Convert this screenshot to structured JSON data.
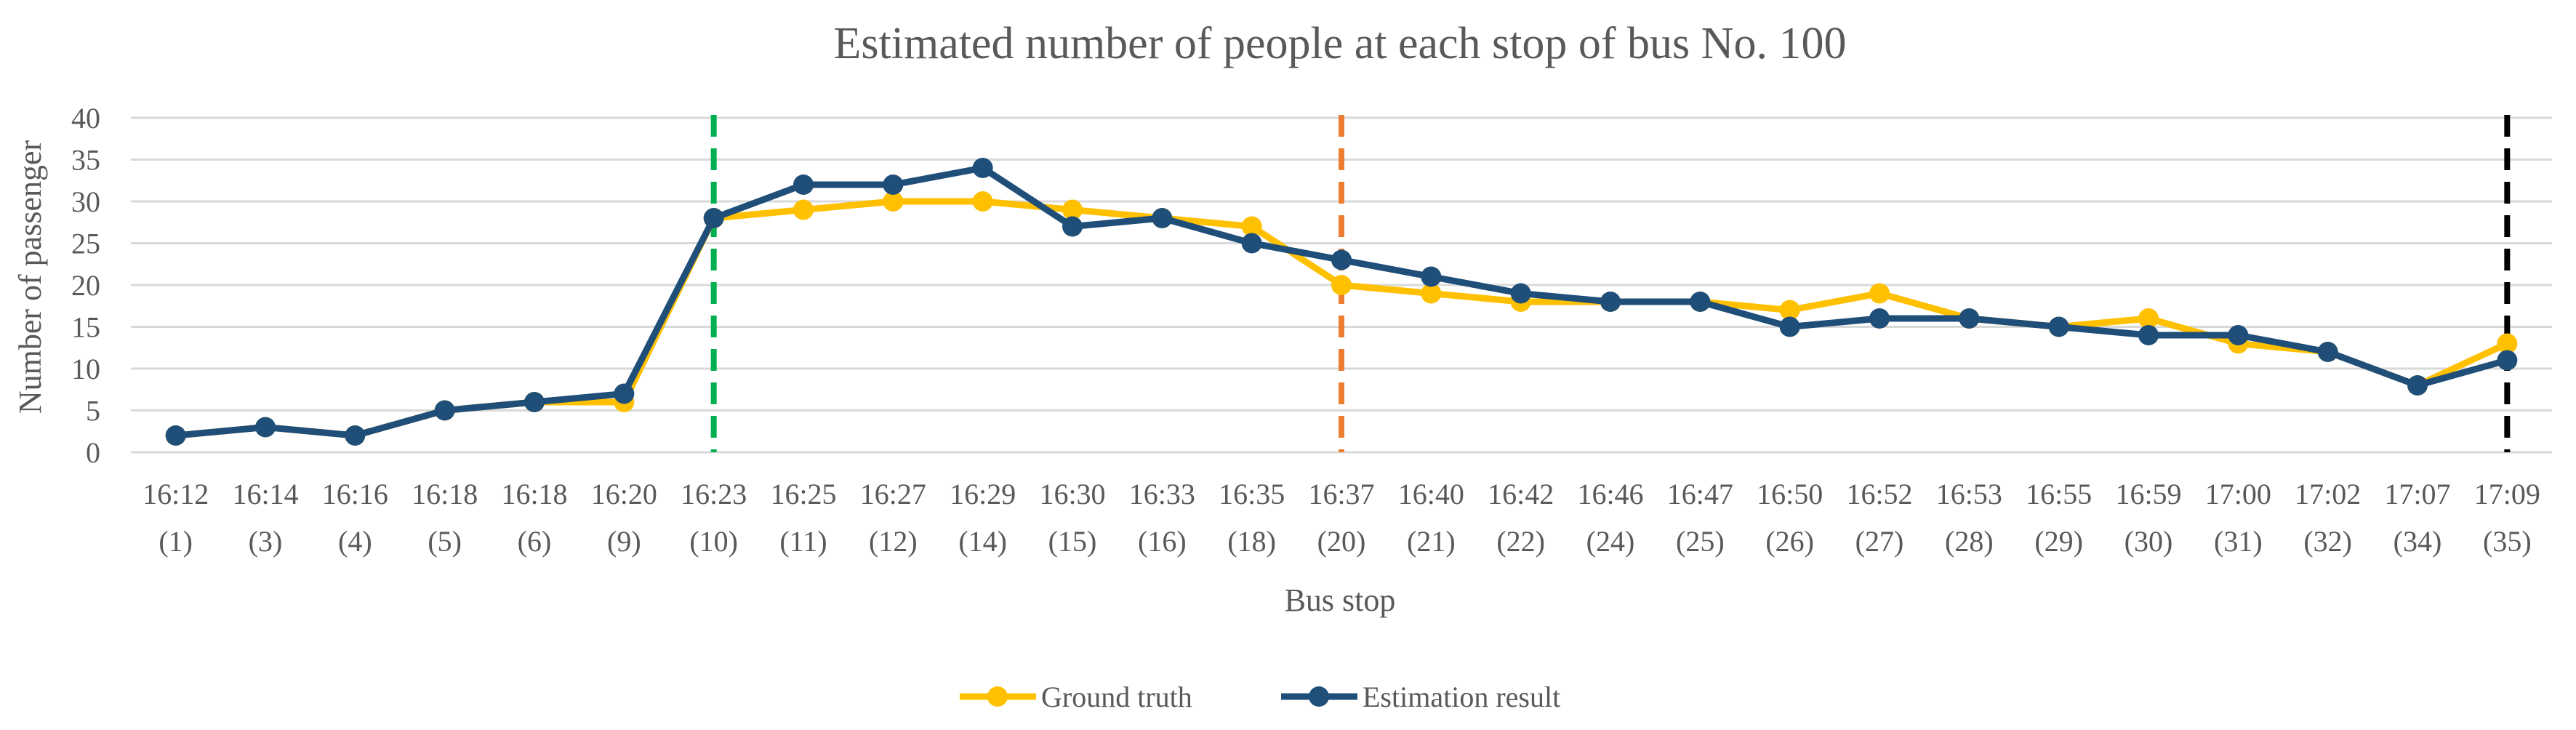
{
  "chart_data": {
    "type": "line",
    "title": "Estimated number of people at each stop of bus No. 100",
    "xlabel": "Bus stop",
    "ylabel": "Number of passenger",
    "ylim": [
      0,
      40
    ],
    "yticks": [
      0,
      5,
      10,
      15,
      20,
      25,
      30,
      35,
      40
    ],
    "grid": true,
    "legend_position": "bottom-center",
    "categories": [
      {
        "time": "16:12",
        "stop": "(1)"
      },
      {
        "time": "16:14",
        "stop": "(3)"
      },
      {
        "time": "16:16",
        "stop": "(4)"
      },
      {
        "time": "16:18",
        "stop": "(5)"
      },
      {
        "time": "16:18",
        "stop": "(6)"
      },
      {
        "time": "16:20",
        "stop": "(9)"
      },
      {
        "time": "16:23",
        "stop": "(10)"
      },
      {
        "time": "16:25",
        "stop": "(11)"
      },
      {
        "time": "16:27",
        "stop": "(12)"
      },
      {
        "time": "16:29",
        "stop": "(14)"
      },
      {
        "time": "16:30",
        "stop": "(15)"
      },
      {
        "time": "16:33",
        "stop": "(16)"
      },
      {
        "time": "16:35",
        "stop": "(18)"
      },
      {
        "time": "16:37",
        "stop": "(20)"
      },
      {
        "time": "16:40",
        "stop": "(21)"
      },
      {
        "time": "16:42",
        "stop": "(22)"
      },
      {
        "time": "16:46",
        "stop": "(24)"
      },
      {
        "time": "16:47",
        "stop": "(25)"
      },
      {
        "time": "16:50",
        "stop": "(26)"
      },
      {
        "time": "16:52",
        "stop": "(27)"
      },
      {
        "time": "16:53",
        "stop": "(28)"
      },
      {
        "time": "16:55",
        "stop": "(29)"
      },
      {
        "time": "16:59",
        "stop": "(30)"
      },
      {
        "time": "17:00",
        "stop": "(31)"
      },
      {
        "time": "17:02",
        "stop": "(32)"
      },
      {
        "time": "17:07",
        "stop": "(34)"
      },
      {
        "time": "17:09",
        "stop": "(35)"
      }
    ],
    "series": [
      {
        "name": "Ground truth",
        "color": "#FFC000",
        "values": [
          2,
          3,
          2,
          5,
          6,
          6,
          28,
          29,
          30,
          30,
          29,
          28,
          27,
          20,
          19,
          18,
          18,
          18,
          17,
          19,
          16,
          15,
          16,
          13,
          12,
          8,
          13
        ]
      },
      {
        "name": "Estimation result",
        "color": "#1F4E79",
        "values": [
          2,
          3,
          2,
          5,
          6,
          7,
          28,
          32,
          32,
          34,
          27,
          28,
          25,
          23,
          21,
          19,
          18,
          18,
          15,
          16,
          16,
          15,
          14,
          14,
          12,
          8,
          11
        ]
      }
    ],
    "vertical_markers": [
      {
        "category_index": 6,
        "color": "#00B050"
      },
      {
        "category_index": 13,
        "color": "#ED7D31"
      },
      {
        "category_index": 26,
        "color": "#000000"
      }
    ]
  }
}
